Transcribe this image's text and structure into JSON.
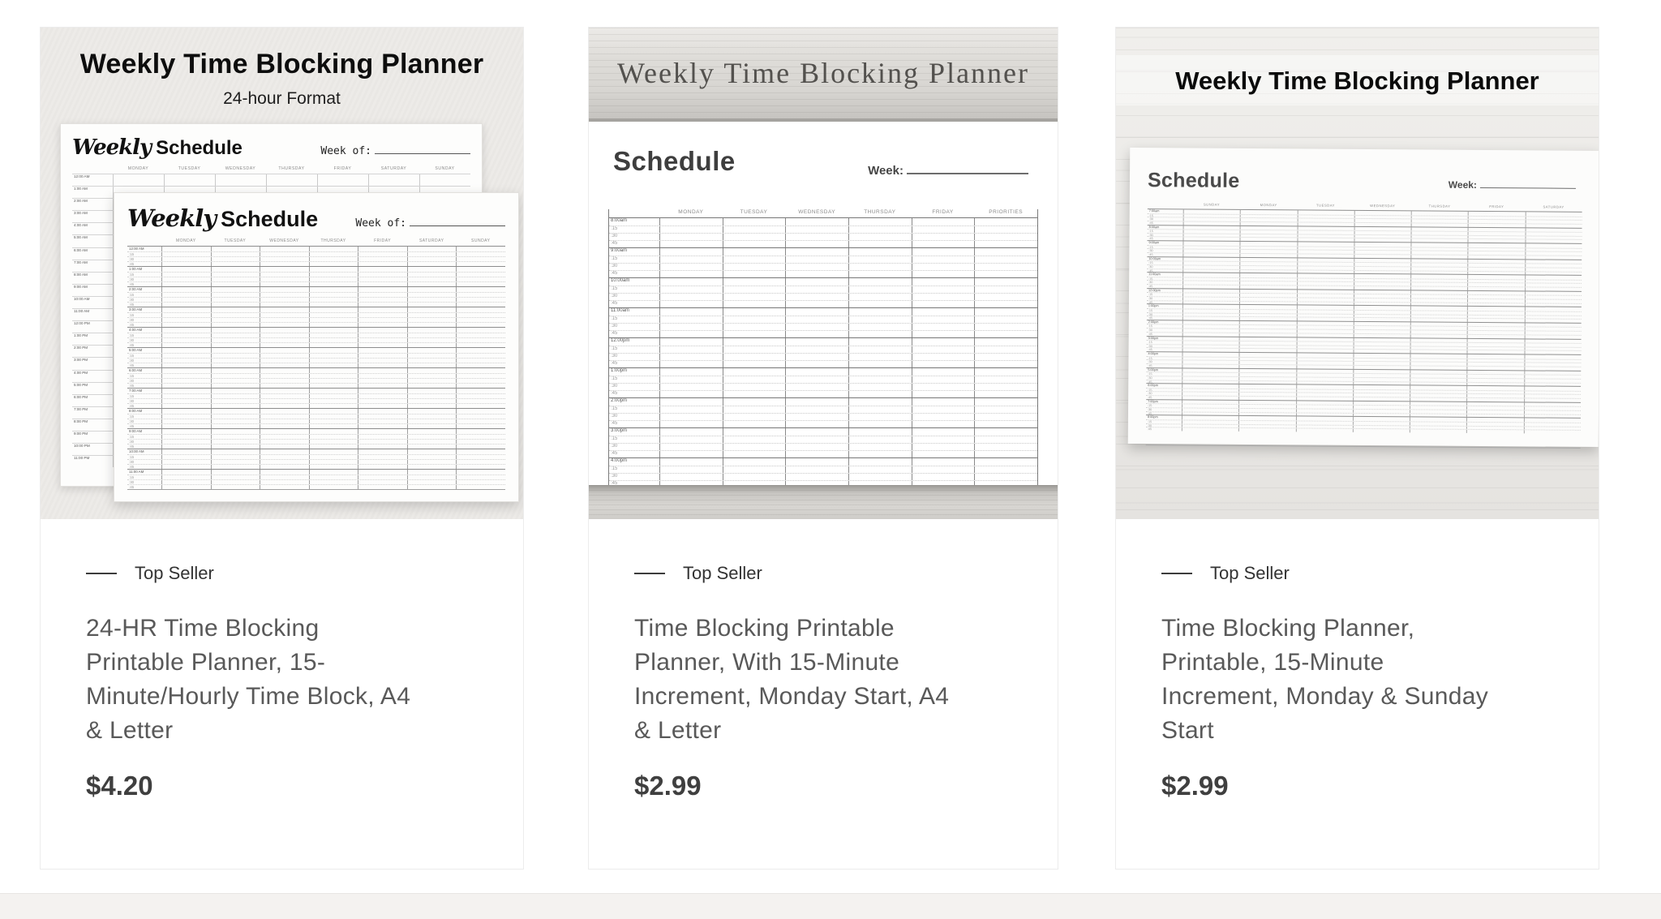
{
  "badge": {
    "label": "Top Seller"
  },
  "colors": {
    "title_text": "#595959",
    "price_text": "#3f3f3f",
    "paper_bg": "#edebe8",
    "card_border": "#ececec"
  },
  "products": [
    {
      "title": "24-HR Time Blocking Printable Planner, 15-Minute/Hourly Time Block, A4 & Letter",
      "price": "$4.20",
      "image": {
        "heading": "Weekly Time Blocking Planner",
        "subheading": "24-hour Format",
        "sheet_script": "Weekly",
        "sheet_word": "Schedule",
        "week_of_label": "Week of:",
        "days": [
          "MONDAY",
          "TUESDAY",
          "WEDNESDAY",
          "THURSDAY",
          "FRIDAY",
          "SATURDAY",
          "SUNDAY"
        ],
        "hours_hourly": [
          "12:00 AM",
          "1:00 AM",
          "2:00 AM",
          "3:00 AM",
          "4:00 AM",
          "5:00 AM",
          "6:00 AM",
          "7:00 AM",
          "8:00 AM",
          "9:00 AM",
          "10:00 AM",
          "11:00 AM",
          "12:00 PM",
          "1:00 PM",
          "2:00 PM",
          "3:00 PM",
          "4:00 PM",
          "5:00 PM",
          "6:00 PM",
          "7:00 PM",
          "8:00 PM",
          "9:00 PM",
          "10:00 PM",
          "11:00 PM"
        ],
        "hours_quarter": [
          "12:00 AM",
          "1:00 AM",
          "2:00 AM",
          "3:00 AM",
          "4:00 AM",
          "5:00 AM",
          "6:00 AM",
          "7:00 AM",
          "8:00 AM",
          "9:00 AM",
          "10:00 AM",
          "11:00 AM"
        ],
        "quarters": [
          ":15",
          ":30",
          ":45"
        ]
      }
    },
    {
      "title": "Time Blocking Printable Planner, With 15-Minute Increment, Monday Start, A4 & Letter",
      "price": "$2.99",
      "image": {
        "heading": "Weekly Time Blocking Planner",
        "schedule_label": "Schedule",
        "week_label": "Week:",
        "days": [
          "MONDAY",
          "TUESDAY",
          "WEDNESDAY",
          "THURSDAY",
          "FRIDAY",
          "PRIORITIES"
        ],
        "hours": [
          "8:00am",
          "9:00am",
          "10:00am",
          "11:00am",
          "12:00pm",
          "1:00pm",
          "2:00pm",
          "3:00pm",
          "4:00pm"
        ],
        "quarters": [
          ":15",
          ":30",
          ":45"
        ]
      }
    },
    {
      "title": "Time Blocking Planner, Printable, 15-Minute Increment, Monday & Sunday Start",
      "price": "$2.99",
      "image": {
        "heading": "Weekly Time Blocking Planner",
        "schedule_label": "Schedule",
        "week_label": "Week:",
        "days": [
          "SUNDAY",
          "MONDAY",
          "TUESDAY",
          "WEDNESDAY",
          "THURSDAY",
          "FRIDAY",
          "SATURDAY"
        ],
        "hours": [
          "7:00am",
          "8:00am",
          "9:00am",
          "10:00am",
          "11:00am",
          "12:00pm",
          "1:00pm",
          "2:00pm",
          "3:00pm",
          "4:00pm",
          "5:00pm",
          "6:00pm",
          "7:00pm",
          "8:00pm"
        ],
        "quarters": [
          ":15",
          ":30",
          ":45"
        ]
      }
    }
  ]
}
